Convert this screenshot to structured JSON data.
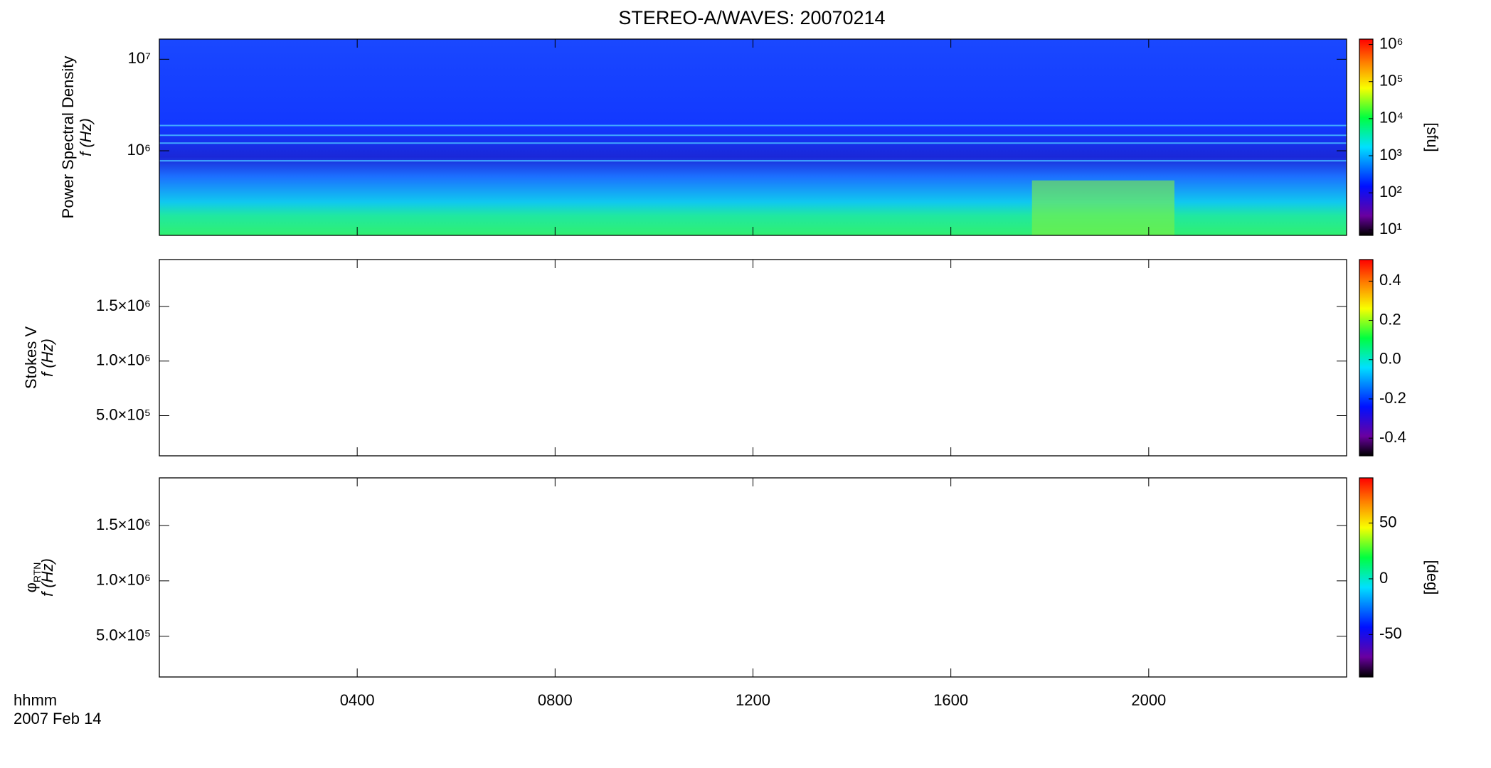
{
  "title": "STEREO-A/WAVES: 20070214",
  "time_label": "hhmm",
  "date_label": "2007 Feb 14",
  "chart_data": [
    {
      "type": "heatmap",
      "ylabel": [
        "Power Spectral Density",
        "f (Hz)"
      ],
      "log_y": true,
      "ylim": [
        119000,
        16600000
      ],
      "yticks": [
        {
          "value": 1000000,
          "label": "10⁶"
        },
        {
          "value": 10000000,
          "label": "10⁷"
        }
      ],
      "colorbar": {
        "log": true,
        "clim": [
          7.1,
          1400000
        ],
        "label": "[sfu]",
        "ticks": [
          {
            "value": 10,
            "label": "10¹"
          },
          {
            "value": 100,
            "label": "10²"
          },
          {
            "value": 1000,
            "label": "10³"
          },
          {
            "value": 10000,
            "label": "10⁴"
          },
          {
            "value": 100000,
            "label": "10⁵"
          },
          {
            "value": 1000000,
            "label": "10⁶"
          }
        ]
      }
    },
    {
      "type": "heatmap",
      "ylabel": [
        "Stokes V",
        "f (Hz)"
      ],
      "log_y": false,
      "ylim": [
        132000,
        1930000
      ],
      "yticks": [
        {
          "value": 500000,
          "label": "5.0×10⁵"
        },
        {
          "value": 1000000,
          "label": "1.0×10⁶"
        },
        {
          "value": 1500000,
          "label": "1.5×10⁶"
        }
      ],
      "colorbar": {
        "log": false,
        "clim": [
          -0.49,
          0.51
        ],
        "ticks": [
          -0.4,
          -0.2,
          {
            "value": 0,
            "label": "0.0"
          },
          0.2,
          0.4
        ]
      }
    },
    {
      "type": "heatmap",
      "ylabel": [
        "φ",
        "f (Hz)"
      ],
      "ylabel_sub": "RTN",
      "log_y": false,
      "ylim": [
        132000,
        1930000
      ],
      "yticks": [
        {
          "value": 500000,
          "label": "5.0×10⁵"
        },
        {
          "value": 1000000,
          "label": "1.0×10⁶"
        },
        {
          "value": 1500000,
          "label": "1.5×10⁶"
        }
      ],
      "colorbar": {
        "log": false,
        "clim": [
          -88,
          90.5
        ],
        "label": "[deg]",
        "ticks": [
          -50,
          0,
          50
        ]
      },
      "xlim": [
        0,
        24
      ],
      "xticks": [
        {
          "value": 4,
          "label": "0400"
        },
        {
          "value": 8,
          "label": "0800"
        },
        {
          "value": 12,
          "label": "1200"
        },
        {
          "value": 16,
          "label": "1600"
        },
        {
          "value": 20,
          "label": "2000"
        }
      ]
    }
  ]
}
